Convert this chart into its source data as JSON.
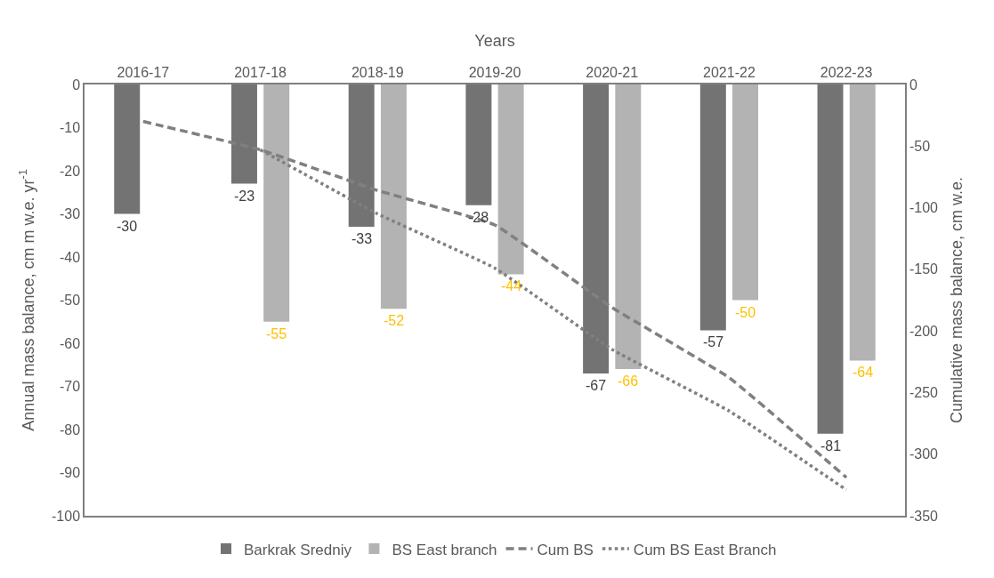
{
  "chart_data": {
    "type": "bar",
    "xlabel": "Years",
    "ylabel": "Annual mass balance, cm m w.e. yr$^{-1}$",
    "y2label": "Cumulative mass balance, cm w.e.",
    "categories": [
      "2016-17",
      "2017-18",
      "2018-19",
      "2019-20",
      "2020-21",
      "2021-22",
      "2022-23"
    ],
    "series": [
      {
        "name": "Barkrak Sredniy",
        "color": "#737373",
        "values": [
          -30,
          -23,
          -33,
          -28,
          -67,
          -57,
          -81
        ],
        "value_labels": [
          "-30",
          "-23",
          "-33",
          "-28",
          "-67",
          "-57",
          "-81"
        ]
      },
      {
        "name": "BS East branch",
        "color": "#b3b3b3",
        "values": [
          null,
          -55,
          -52,
          -44,
          -66,
          -50,
          -64
        ],
        "value_labels": [
          null,
          "-55",
          "-52",
          "-44",
          "-66",
          "-50",
          "-64"
        ]
      },
      {
        "name": "Cum BS",
        "type": "line",
        "axis": "y2",
        "line_style": "dashed",
        "color": "#808080",
        "values": [
          -30,
          -53,
          -86,
          -114,
          -181,
          -238,
          -319
        ]
      },
      {
        "name": "Cum BS East Branch",
        "type": "line",
        "axis": "y2",
        "line_style": "dotted",
        "color": "#808080",
        "values": [
          null,
          -53,
          -105,
          -149,
          -215,
          -265,
          -329
        ]
      }
    ],
    "ylim": [
      -100,
      0
    ],
    "yticks": [
      -100,
      -90,
      -80,
      -70,
      -60,
      -50,
      -40,
      -30,
      -20,
      -10,
      0
    ],
    "y2lim": [
      -350,
      0
    ],
    "y2ticks": [
      -350,
      -300,
      -250,
      -200,
      -150,
      -100,
      -50,
      0
    ],
    "legend": "bottom"
  }
}
